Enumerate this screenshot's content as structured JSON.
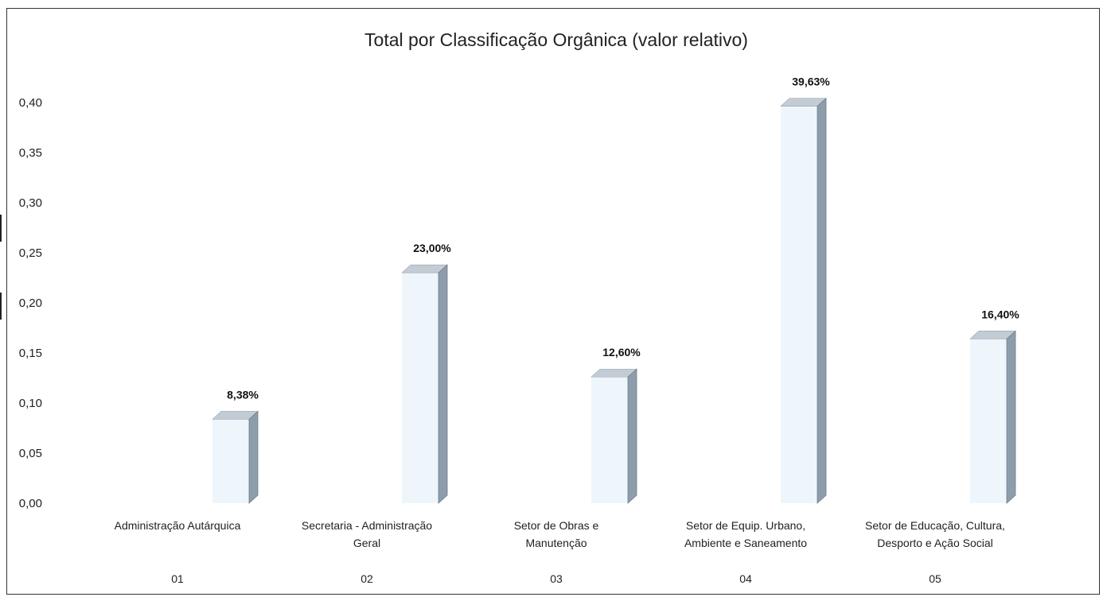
{
  "chart_data": {
    "type": "bar",
    "title": "Total por Classificação Orgânica (valor relativo)",
    "categories": [
      "Administração Autárquica",
      "Secretaria - Administração Geral",
      "Setor de Obras e Manutenção",
      "Setor de Equip. Urbano, Ambiente e Saneamento",
      "Setor de Educação, Cultura, Desporto e Ação Social"
    ],
    "category_lines": [
      [
        "Administração Autárquica"
      ],
      [
        "Secretaria - Administração",
        "Geral"
      ],
      [
        "Setor de Obras e",
        "Manutenção"
      ],
      [
        "Setor de Equip. Urbano,",
        "Ambiente e Saneamento"
      ],
      [
        "Setor de Educação, Cultura,",
        "Desporto e Ação Social"
      ]
    ],
    "codes": [
      "01",
      "02",
      "03",
      "04",
      "05"
    ],
    "values": [
      0.0838,
      0.23,
      0.126,
      0.3963,
      0.164
    ],
    "data_labels": [
      "8,38%",
      "23,00%",
      "12,60%",
      "39,63%",
      "16,40%"
    ],
    "ylim": [
      0,
      0.4
    ],
    "yticks": [
      "0,00",
      "0,05",
      "0,10",
      "0,15",
      "0,20",
      "0,25",
      "0,30",
      "0,35",
      "0,40"
    ],
    "xlabel": "",
    "ylabel": "",
    "grid": false,
    "legend": "none",
    "colors": {
      "bar_side": "#8e9dac",
      "bar_top": "#c3ccd4",
      "bar_front": "#eef6fb"
    }
  }
}
